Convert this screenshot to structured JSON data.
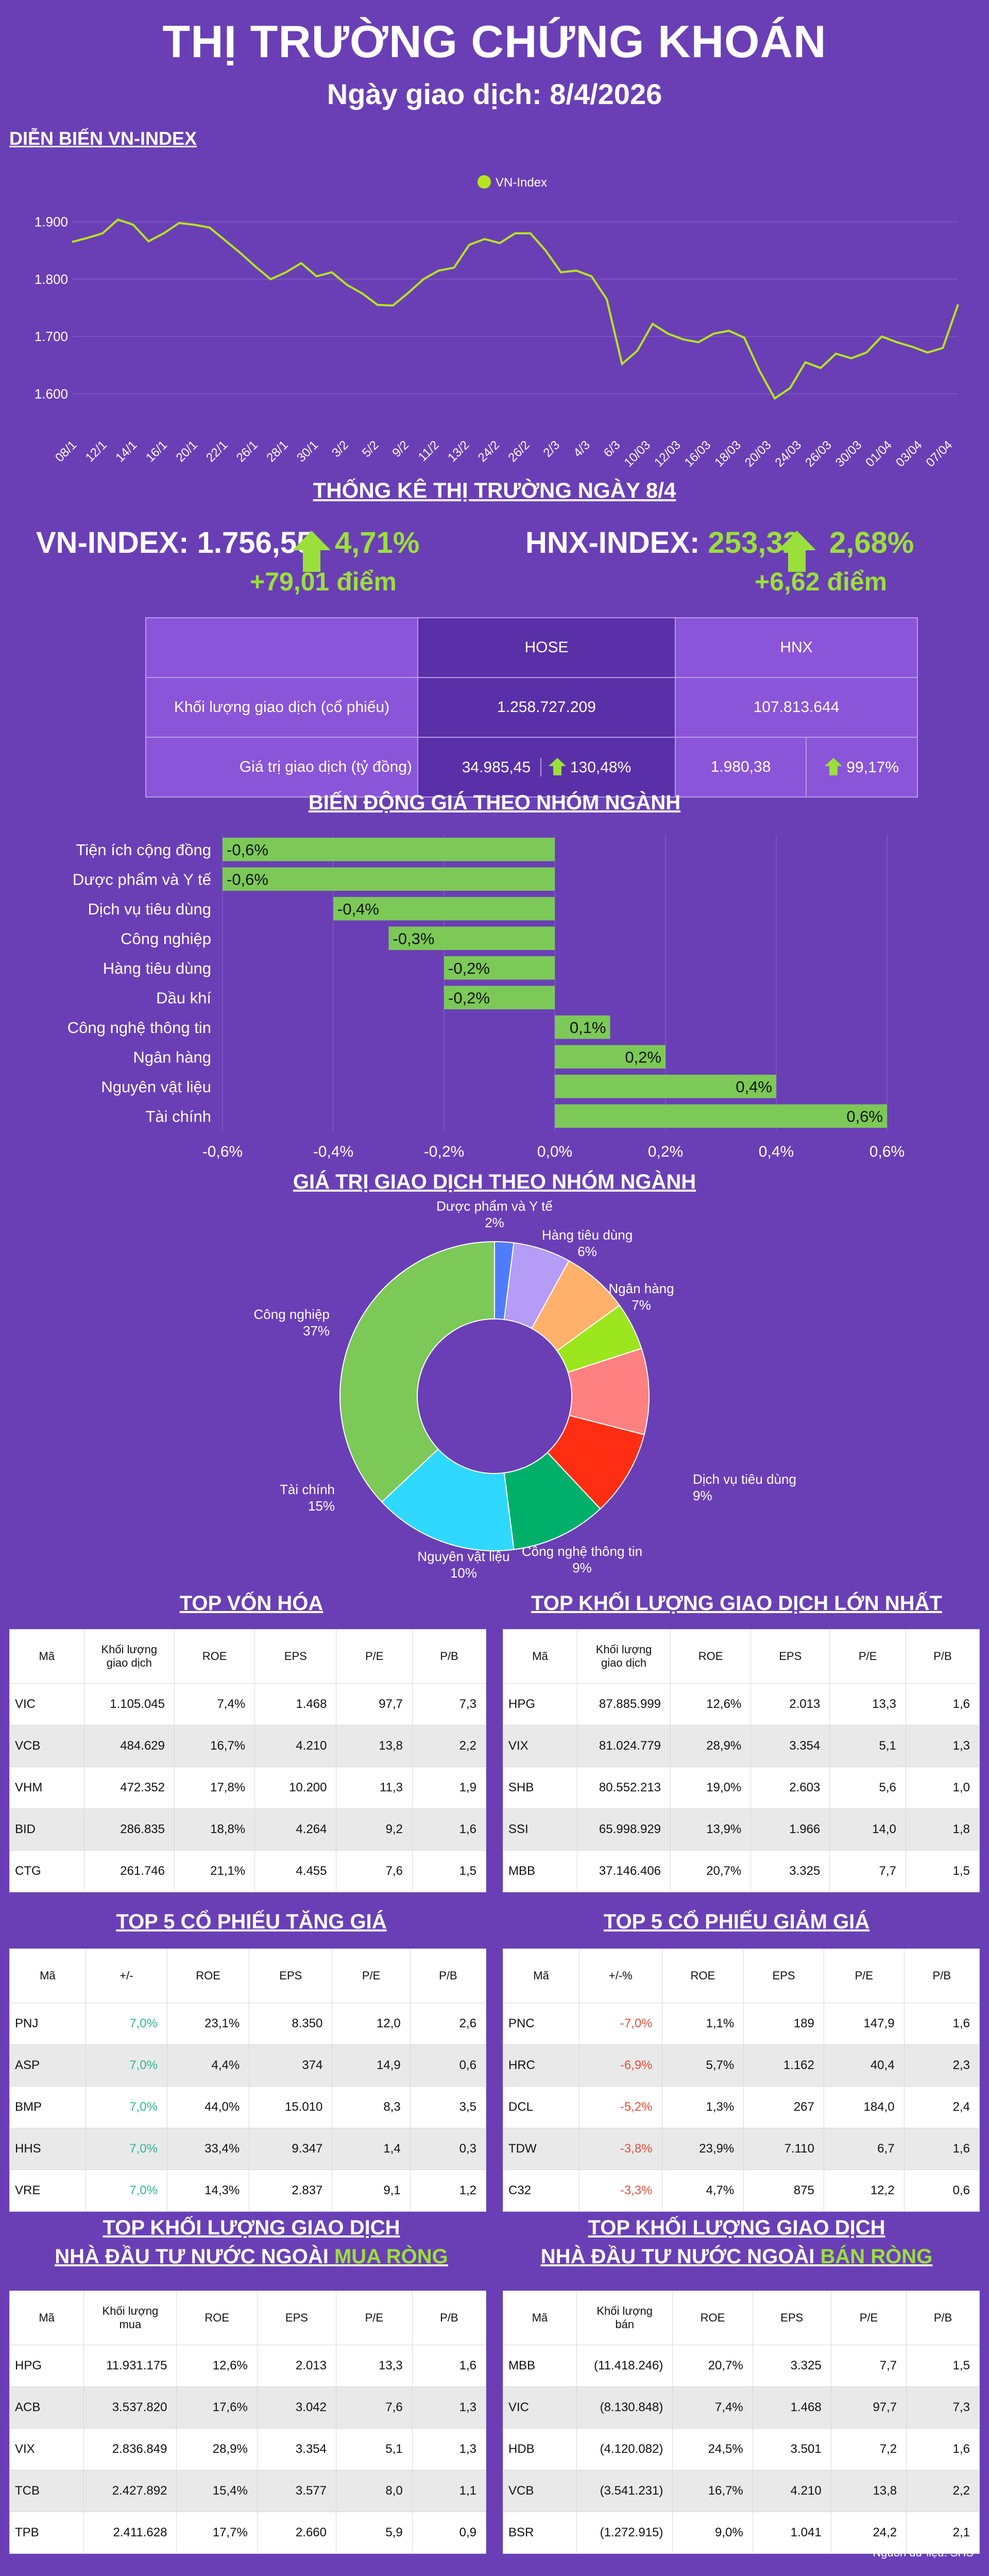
{
  "header": {
    "title": "THỊ TRƯỜNG CHỨNG KHOÁN",
    "subtitle": "Ngày giao dịch: 8/4/2026"
  },
  "section_vnindex": "DIỄN BIẾN VN-INDEX",
  "section_stats": "THỐNG KÊ THỊ TRƯỜNG NGÀY 8/4",
  "section_sector_change": "BIẾN ĐỘNG GIÁ THEO NHÓM NGÀNH",
  "section_sector_value": "GIÁ TRỊ GIAO DỊCH THEO NHÓM NGÀNH",
  "indices": {
    "vn": {
      "label": "VN-INDEX:",
      "value": "1.756,55",
      "pct": "4,71%",
      "points": "+79,01 điểm"
    },
    "hnx": {
      "label": "HNX-INDEX:",
      "value": "253,32",
      "pct": "2,68%",
      "points": "+6,62 điểm"
    }
  },
  "stats_table": {
    "col_hose": "HOSE",
    "col_hnx": "HNX",
    "row1_label": "Khối lượng giao dịch (cổ phiếu)",
    "row1_hose": "1.258.727.209",
    "row1_hnx": "107.813.644",
    "row2_label": "Giá trị giao dịch (tỷ đồng)",
    "row2_hose": "34.985,45",
    "row2_hose_pct": "130,48%",
    "row2_hnx": "1.980,38",
    "row2_hnx_pct": "99,17%"
  },
  "colors": {
    "bg": "#6a3fb6",
    "line": "#b5e61d",
    "bar": "#7cc957",
    "up": "#2fb88f",
    "down": "#e0503a"
  },
  "chart_data": [
    {
      "type": "line",
      "legend": "VN-Index",
      "legend_position": "top-center",
      "ylim": [
        1550,
        1950
      ],
      "yticks": [
        "1.600",
        "1.700",
        "1.800",
        "1.900"
      ],
      "ytick_values": [
        1600,
        1700,
        1800,
        1900
      ],
      "xticks": [
        "08/1",
        "12/1",
        "14/1",
        "16/1",
        "20/1",
        "22/1",
        "26/1",
        "28/1",
        "30/1",
        "3/2",
        "5/2",
        "9/2",
        "11/2",
        "13/2",
        "24/2",
        "26/2",
        "2/3",
        "4/3",
        "6/3",
        "10/03",
        "12/03",
        "16/03",
        "18/03",
        "20/03",
        "24/03",
        "26/03",
        "30/03",
        "01/04",
        "03/04",
        "07/04"
      ],
      "y": [
        1865,
        1872,
        1880,
        1904,
        1895,
        1866,
        1880,
        1898,
        1895,
        1890,
        1868,
        1846,
        1822,
        1800,
        1812,
        1828,
        1805,
        1812,
        1790,
        1775,
        1755,
        1754,
        1776,
        1800,
        1815,
        1820,
        1860,
        1870,
        1863,
        1880,
        1880,
        1850,
        1812,
        1815,
        1805,
        1765,
        1652,
        1675,
        1722,
        1705,
        1695,
        1690,
        1705,
        1710,
        1698,
        1640,
        1592,
        1610,
        1655,
        1645,
        1670,
        1662,
        1672,
        1700,
        1690,
        1682,
        1672,
        1680,
        1756
      ]
    },
    {
      "type": "bar",
      "orientation": "horizontal",
      "categories": [
        "Tiện ích cộng đồng",
        "Dược phẩm và Y tế",
        "Dịch vụ tiêu dùng",
        "Công nghiệp",
        "Hàng tiêu dùng",
        "Dầu khí",
        "Công nghệ thông tin",
        "Ngân hàng",
        "Nguyên vật liệu",
        "Tài chính"
      ],
      "values": [
        -0.6,
        -0.6,
        -0.4,
        -0.3,
        -0.2,
        -0.2,
        0.1,
        0.2,
        0.4,
        0.6
      ],
      "labels": [
        "-0,6%",
        "-0,6%",
        "-0,4%",
        "-0,3%",
        "-0,2%",
        "-0,2%",
        "0,1%",
        "0,2%",
        "0,4%",
        "0,6%"
      ],
      "xlim": [
        -0.6,
        0.6
      ],
      "xticks": [
        "-0,6%",
        "-0,4%",
        "-0,2%",
        "0,0%",
        "0,2%",
        "0,4%",
        "0,6%"
      ],
      "grid": true
    },
    {
      "type": "pie",
      "donut": true,
      "slices": [
        {
          "name": "Dược phẩm và Y tế",
          "value": 2,
          "label": "2%",
          "color": "#4f7cff"
        },
        {
          "name": "Hàng tiêu dùng",
          "value": 6,
          "label": "6%",
          "color": "#b59cf7"
        },
        {
          "name": "Ngân hàng",
          "value": 7,
          "label": "7%",
          "color": "#ffb06b"
        },
        {
          "name": "",
          "value": 5,
          "label": "",
          "color": "#9be61d"
        },
        {
          "name": "Dịch vụ tiêu dùng",
          "value": 9,
          "label": "9%",
          "color": "#ff8080"
        },
        {
          "name": "Công nghệ thông tin",
          "value": 9,
          "label": "9%",
          "color": "#ff2e12"
        },
        {
          "name": "Nguyên vật liệu",
          "value": 10,
          "label": "10%",
          "color": "#00b06a"
        },
        {
          "name": "Tài chính",
          "value": 15,
          "label": "15%",
          "color": "#2fd8ff"
        },
        {
          "name": "Công nghiệp",
          "value": 37,
          "label": "37%",
          "color": "#7cc957"
        }
      ]
    }
  ],
  "tables": {
    "top_cap": {
      "title": "TOP VỐN HÓA",
      "headers": [
        "Mã",
        "Khối lượng giao dịch",
        "ROE",
        "EPS",
        "P/E",
        "P/B"
      ],
      "rows": [
        [
          "VIC",
          "1.105.045",
          "7,4%",
          "1.468",
          "97,7",
          "7,3"
        ],
        [
          "VCB",
          "484.629",
          "16,7%",
          "4.210",
          "13,8",
          "2,2"
        ],
        [
          "VHM",
          "472.352",
          "17,8%",
          "10.200",
          "11,3",
          "1,9"
        ],
        [
          "BID",
          "286.835",
          "18,8%",
          "4.264",
          "9,2",
          "1,6"
        ],
        [
          "CTG",
          "261.746",
          "21,1%",
          "4.455",
          "7,6",
          "1,5"
        ]
      ]
    },
    "top_volume": {
      "title": "TOP KHỐI LƯỢNG GIAO DỊCH LỚN NHẤT",
      "headers": [
        "Mã",
        "Khối lượng giao dịch",
        "ROE",
        "EPS",
        "P/E",
        "P/B"
      ],
      "rows": [
        [
          "HPG",
          "87.885.999",
          "12,6%",
          "2.013",
          "13,3",
          "1,6"
        ],
        [
          "VIX",
          "81.024.779",
          "28,9%",
          "3.354",
          "5,1",
          "1,3"
        ],
        [
          "SHB",
          "80.552.213",
          "19,0%",
          "2.603",
          "5,6",
          "1,0"
        ],
        [
          "SSI",
          "65.998.929",
          "13,9%",
          "1.966",
          "14,0",
          "1,8"
        ],
        [
          "MBB",
          "37.146.406",
          "20,7%",
          "3.325",
          "7,7",
          "1,5"
        ]
      ]
    },
    "top_gain": {
      "title": "TOP 5 CỔ PHIẾU TĂNG GIÁ",
      "headers": [
        "Mã",
        "+/-",
        "ROE",
        "EPS",
        "P/E",
        "P/B"
      ],
      "rows": [
        [
          "PNJ",
          "7,0%",
          "23,1%",
          "8.350",
          "12,0",
          "2,6"
        ],
        [
          "ASP",
          "7,0%",
          "4,4%",
          "374",
          "14,9",
          "0,6"
        ],
        [
          "BMP",
          "7,0%",
          "44,0%",
          "15.010",
          "8,3",
          "3,5"
        ],
        [
          "HHS",
          "7,0%",
          "33,4%",
          "9.347",
          "1,4",
          "0,3"
        ],
        [
          "VRE",
          "7,0%",
          "14,3%",
          "2.837",
          "9,1",
          "1,2"
        ]
      ]
    },
    "top_loss": {
      "title": "TOP 5 CỔ PHIẾU GIẢM GIÁ",
      "headers": [
        "Mã",
        "+/-%",
        "ROE",
        "EPS",
        "P/E",
        "P/B"
      ],
      "rows": [
        [
          "PNC",
          "-7,0%",
          "1,1%",
          "189",
          "147,9",
          "1,6"
        ],
        [
          "HRC",
          "-6,9%",
          "5,7%",
          "1.162",
          "40,4",
          "2,3"
        ],
        [
          "DCL",
          "-5,2%",
          "1,3%",
          "267",
          "184,0",
          "2,4"
        ],
        [
          "TDW",
          "-3,8%",
          "23,9%",
          "7.110",
          "6,7",
          "1,6"
        ],
        [
          "C32",
          "-3,3%",
          "4,7%",
          "875",
          "12,2",
          "0,6"
        ]
      ]
    },
    "foreign_buy": {
      "title_line1": "TOP KHỐI LƯỢNG GIAO DỊCH",
      "title_line2_a": "NHÀ ĐẦU TƯ NƯỚC NGOÀI ",
      "title_line2_b": "MUA RÒNG",
      "headers": [
        "Mã",
        "Khối lượng mua",
        "ROE",
        "EPS",
        "P/E",
        "P/B"
      ],
      "rows": [
        [
          "HPG",
          "11.931.175",
          "12,6%",
          "2.013",
          "13,3",
          "1,6"
        ],
        [
          "ACB",
          "3.537.820",
          "17,6%",
          "3.042",
          "7,6",
          "1,3"
        ],
        [
          "VIX",
          "2.836.849",
          "28,9%",
          "3.354",
          "5,1",
          "1,3"
        ],
        [
          "TCB",
          "2.427.892",
          "15,4%",
          "3.577",
          "8,0",
          "1,1"
        ],
        [
          "TPB",
          "2.411.628",
          "17,7%",
          "2.660",
          "5,9",
          "0,9"
        ]
      ]
    },
    "foreign_sell": {
      "title_line1": "TOP KHỐI LƯỢNG GIAO DỊCH",
      "title_line2_a": "NHÀ ĐẦU TƯ NƯỚC NGOÀI ",
      "title_line2_b": "BÁN RÒNG",
      "headers": [
        "Mã",
        "Khối lượng bán",
        "ROE",
        "EPS",
        "P/E",
        "P/B"
      ],
      "rows": [
        [
          "MBB",
          "(11.418.246)",
          "20,7%",
          "3.325",
          "7,7",
          "1,5"
        ],
        [
          "VIC",
          "(8.130.848)",
          "7,4%",
          "1.468",
          "97,7",
          "7,3"
        ],
        [
          "HDB",
          "(4.120.082)",
          "24,5%",
          "3.501",
          "7,2",
          "1,6"
        ],
        [
          "VCB",
          "(3.541.231)",
          "16,7%",
          "4.210",
          "13,8",
          "2,2"
        ],
        [
          "BSR",
          "(1.272.915)",
          "9,0%",
          "1.041",
          "24,2",
          "2,1"
        ]
      ]
    }
  },
  "source": "Nguồn dữ liệu: SHS"
}
